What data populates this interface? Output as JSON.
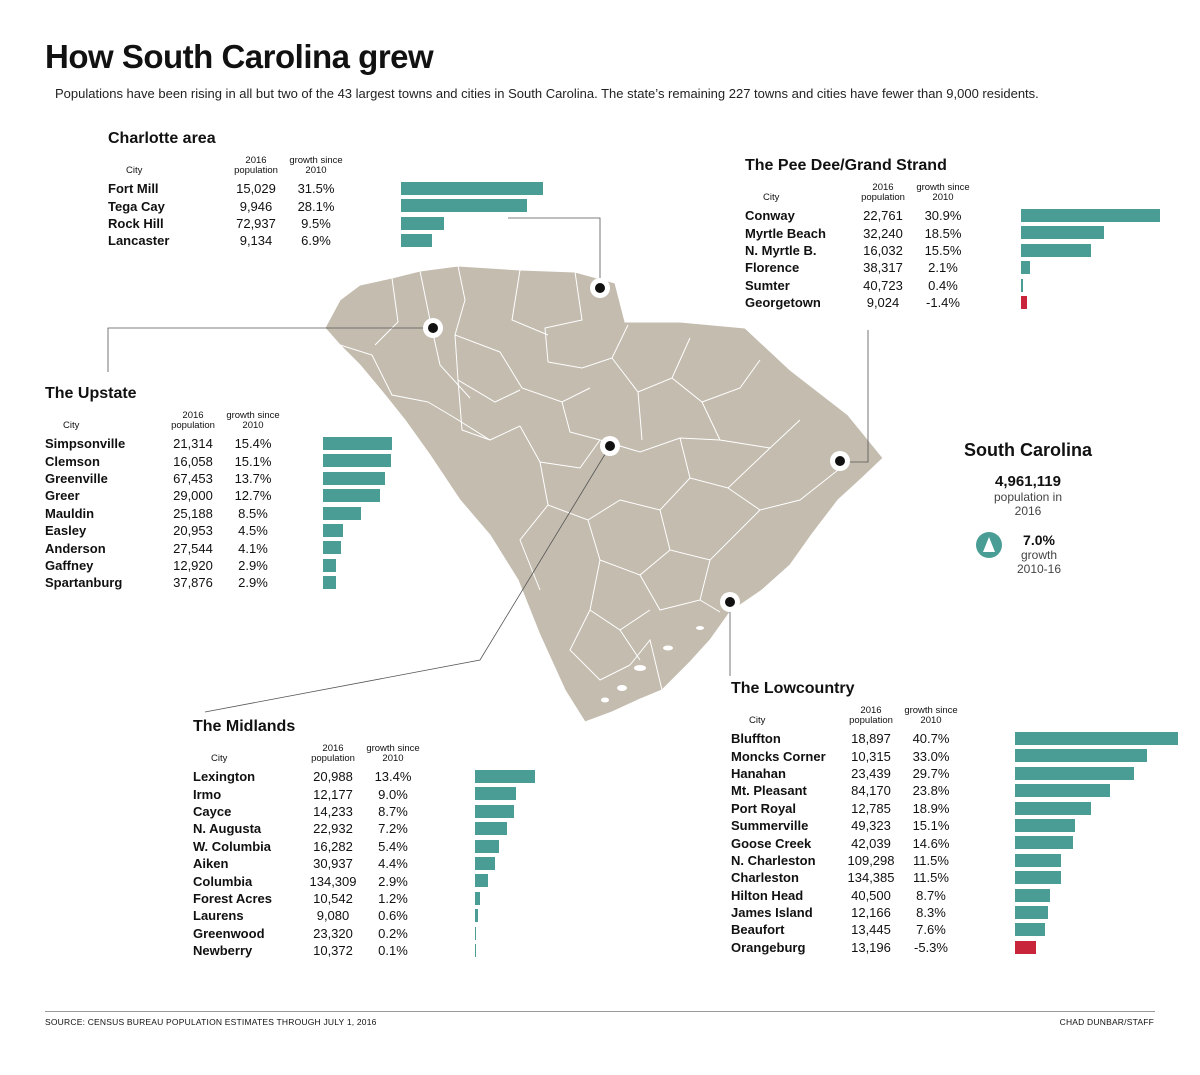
{
  "title": "How South Carolina grew",
  "subtitle": "Populations have been rising in all but two of the 43 largest towns and cities in South Carolina. The state’s remaining 227 towns and cities have fewer than 9,000 residents.",
  "headers": {
    "city": "City",
    "pop": "2016 population",
    "growth": "growth since 2010"
  },
  "state": {
    "name": "South Carolina",
    "population": "4,961,119",
    "pop_label": "population in 2016",
    "growth": "7.0%",
    "growth_label": "growth 2010-16"
  },
  "source": "SOURCE: CENSUS BUREAU POPULATION ESTIMATES THROUGH JULY 1, 2016",
  "credit": "CHAD DUNBAR/STAFF",
  "colors": {
    "positive": "#4a9d95",
    "negative": "#c8243a",
    "map_fill": "#c3bcaf",
    "map_border": "#ffffff"
  },
  "chart_data": [
    {
      "type": "bar",
      "title": "Charlotte area",
      "rows": [
        {
          "city": "Fort Mill",
          "population": "15,029",
          "growth_label": "31.5%",
          "growth": 31.5
        },
        {
          "city": "Tega Cay",
          "population": "9,946",
          "growth_label": "28.1%",
          "growth": 28.1
        },
        {
          "city": "Rock Hill",
          "population": "72,937",
          "growth_label": "9.5%",
          "growth": 9.5
        },
        {
          "city": "Lancaster",
          "population": "9,134",
          "growth_label": "6.9%",
          "growth": 6.9
        }
      ]
    },
    {
      "type": "bar",
      "title": "The Pee Dee/Grand Strand",
      "rows": [
        {
          "city": "Conway",
          "population": "22,761",
          "growth_label": "30.9%",
          "growth": 30.9
        },
        {
          "city": "Myrtle Beach",
          "population": "32,240",
          "growth_label": "18.5%",
          "growth": 18.5
        },
        {
          "city": "N. Myrtle B.",
          "population": "16,032",
          "growth_label": "15.5%",
          "growth": 15.5
        },
        {
          "city": "Florence",
          "population": "38,317",
          "growth_label": "2.1%",
          "growth": 2.1
        },
        {
          "city": "Sumter",
          "population": "40,723",
          "growth_label": "0.4%",
          "growth": 0.4
        },
        {
          "city": "Georgetown",
          "population": "9,024",
          "growth_label": "-1.4%",
          "growth": -1.4
        }
      ]
    },
    {
      "type": "bar",
      "title": "The Upstate",
      "rows": [
        {
          "city": "Simpsonville",
          "population": "21,314",
          "growth_label": "15.4%",
          "growth": 15.4
        },
        {
          "city": "Clemson",
          "population": "16,058",
          "growth_label": "15.1%",
          "growth": 15.1
        },
        {
          "city": "Greenville",
          "population": "67,453",
          "growth_label": "13.7%",
          "growth": 13.7
        },
        {
          "city": "Greer",
          "population": "29,000",
          "growth_label": "12.7%",
          "growth": 12.7
        },
        {
          "city": "Mauldin",
          "population": "25,188",
          "growth_label": "8.5%",
          "growth": 8.5
        },
        {
          "city": "Easley",
          "population": "20,953",
          "growth_label": "4.5%",
          "growth": 4.5
        },
        {
          "city": "Anderson",
          "population": "27,544",
          "growth_label": "4.1%",
          "growth": 4.1
        },
        {
          "city": "Gaffney",
          "population": "12,920",
          "growth_label": "2.9%",
          "growth": 2.9
        },
        {
          "city": "Spartanburg",
          "population": "37,876",
          "growth_label": "2.9%",
          "growth": 2.9
        }
      ]
    },
    {
      "type": "bar",
      "title": "The Midlands",
      "rows": [
        {
          "city": "Lexington",
          "population": "20,988",
          "growth_label": "13.4%",
          "growth": 13.4
        },
        {
          "city": "Irmo",
          "population": "12,177",
          "growth_label": "9.0%",
          "growth": 9.0
        },
        {
          "city": "Cayce",
          "population": "14,233",
          "growth_label": "8.7%",
          "growth": 8.7
        },
        {
          "city": "N. Augusta",
          "population": "22,932",
          "growth_label": "7.2%",
          "growth": 7.2
        },
        {
          "city": "W. Columbia",
          "population": "16,282",
          "growth_label": "5.4%",
          "growth": 5.4
        },
        {
          "city": "Aiken",
          "population": "30,937",
          "growth_label": "4.4%",
          "growth": 4.4
        },
        {
          "city": "Columbia",
          "population": "134,309",
          "growth_label": "2.9%",
          "growth": 2.9
        },
        {
          "city": "Forest Acres",
          "population": "10,542",
          "growth_label": "1.2%",
          "growth": 1.2
        },
        {
          "city": "Laurens",
          "population": "9,080",
          "growth_label": "0.6%",
          "growth": 0.6
        },
        {
          "city": "Greenwood",
          "population": "23,320",
          "growth_label": "0.2%",
          "growth": 0.2
        },
        {
          "city": "Newberry",
          "population": "10,372",
          "growth_label": "0.1%",
          "growth": 0.1
        }
      ]
    },
    {
      "type": "bar",
      "title": "The Lowcountry",
      "rows": [
        {
          "city": "Bluffton",
          "population": "18,897",
          "growth_label": "40.7%",
          "growth": 40.7
        },
        {
          "city": "Moncks Corner",
          "population": "10,315",
          "growth_label": "33.0%",
          "growth": 33.0
        },
        {
          "city": "Hanahan",
          "population": "23,439",
          "growth_label": "29.7%",
          "growth": 29.7
        },
        {
          "city": "Mt. Pleasant",
          "population": "84,170",
          "growth_label": "23.8%",
          "growth": 23.8
        },
        {
          "city": "Port Royal",
          "population": "12,785",
          "growth_label": "18.9%",
          "growth": 18.9
        },
        {
          "city": "Summerville",
          "population": "49,323",
          "growth_label": "15.1%",
          "growth": 15.1
        },
        {
          "city": "Goose Creek",
          "population": "42,039",
          "growth_label": "14.6%",
          "growth": 14.6
        },
        {
          "city": "N. Charleston",
          "population": "109,298",
          "growth_label": "11.5%",
          "growth": 11.5
        },
        {
          "city": "Charleston",
          "population": "134,385",
          "growth_label": "11.5%",
          "growth": 11.5
        },
        {
          "city": "Hilton Head",
          "population": "40,500",
          "growth_label": "8.7%",
          "growth": 8.7
        },
        {
          "city": "James Island",
          "population": "12,166",
          "growth_label": "8.3%",
          "growth": 8.3
        },
        {
          "city": "Beaufort",
          "population": "13,445",
          "growth_label": "7.6%",
          "growth": 7.6
        },
        {
          "city": "Orangeburg",
          "population": "13,196",
          "growth_label": "-5.3%",
          "growth": -5.3
        }
      ]
    }
  ]
}
